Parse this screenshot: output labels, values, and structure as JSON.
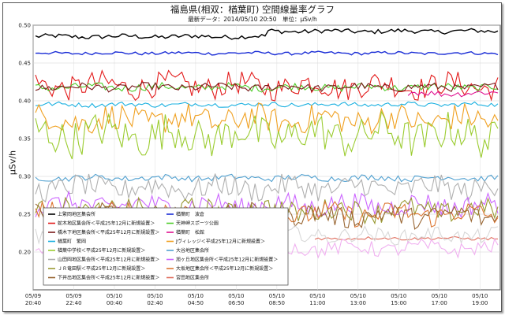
{
  "chart_data": {
    "type": "line",
    "title": "福島県(相双：楢葉町) 空間線量率グラフ",
    "subtitle": "最新データ：2014/05/10 20:50　単位：μSv/h",
    "ylabel": "μSv/h",
    "xlabel": "",
    "ylim": [
      0.15,
      0.5
    ],
    "yticks": [
      "0.50",
      "0.45",
      "0.40",
      "0.35",
      "0.30",
      "0.25",
      "0.20"
    ],
    "xticks": [
      {
        "date": "05/09",
        "time": "20:40"
      },
      {
        "date": "05/09",
        "time": "22:40"
      },
      {
        "date": "05/10",
        "time": "00:40"
      },
      {
        "date": "05/10",
        "time": "02:40"
      },
      {
        "date": "05/10",
        "time": "04:50"
      },
      {
        "date": "05/10",
        "time": "06:50"
      },
      {
        "date": "05/10",
        "time": "08:50"
      },
      {
        "date": "05/10",
        "time": "11:00"
      },
      {
        "date": "05/10",
        "time": "13:00"
      },
      {
        "date": "05/10",
        "time": "15:00"
      },
      {
        "date": "05/10",
        "time": "17:00"
      },
      {
        "date": "05/10",
        "time": "19:00"
      }
    ],
    "legend_position": "bottom-left",
    "series": [
      {
        "name": "上繁岡地区集会所",
        "color": "#000000",
        "mean": 0.485,
        "amp": 0.003,
        "step": {
          "at": 0.5,
          "delta": 0.007
        }
      },
      {
        "name": "楢葉町　波倉",
        "color": "#1a2dd6",
        "mean": 0.463,
        "amp": 0.002
      },
      {
        "name": "蛇木地区集会所＜平成25年12月に新規設置＞",
        "color": "#e31b1b",
        "mean": 0.42,
        "amp": 0.016
      },
      {
        "name": "天神岬スポーツ公園",
        "color": "#4fcc2a",
        "mean": 0.418,
        "amp": 0.005
      },
      {
        "name": "橋木下地区集会所＜平成25年12月に新規設置＞",
        "color": "#7a1a1a",
        "mean": 0.418,
        "amp": 0.005
      },
      {
        "name": "楢葉町　松館",
        "color": "#e01090",
        "mean": 0.41,
        "amp": 0.004,
        "start": 0.8
      },
      {
        "name": "楢葉町　繁岡",
        "color": "#1ab0e0",
        "mean": 0.395,
        "amp": 0.003
      },
      {
        "name": "Jヴィレッジ＜平成25年12月に新規設置＞",
        "color": "#f0a020",
        "mean": 0.375,
        "amp": 0.018
      },
      {
        "name": "楢葉中学校＜平成25年12月に新規設置＞",
        "color": "#9bcc30",
        "mean": 0.355,
        "amp": 0.025
      },
      {
        "name": "大谷地区集会所",
        "color": "#50a0d0",
        "mean": 0.298,
        "amp": 0.004
      },
      {
        "name": "山田岡地区集会所＜平成25年12月に新規設置＞",
        "color": "#b0b0b0",
        "mean": 0.285,
        "amp": 0.015
      },
      {
        "name": "旭ヶ丘地区集会所＜平成25年12月に新規設置＞",
        "color": "#cc66ff",
        "mean": 0.262,
        "amp": 0.014
      },
      {
        "name": "ＪＲ竜田駅＜平成25年12月に新規設置＞",
        "color": "#999933",
        "mean": 0.255,
        "amp": 0.014
      },
      {
        "name": "大坂地区集会所＜平成25年12月に新規設置＞",
        "color": "#dd7733",
        "mean": 0.25,
        "amp": 0.014
      },
      {
        "name": "下井出地区集会所＜平成25年12月に新規設置＞",
        "color": "#996633",
        "mean": 0.248,
        "amp": 0.014
      },
      {
        "name": "宮田地区集会所",
        "color": "#e07060",
        "mean": 0.218,
        "amp": 0.002,
        "start": 0.6
      },
      {
        "name": "",
        "color": "#d8d8d8",
        "mean": 0.222,
        "amp": 0.01
      },
      {
        "name": "",
        "color": "#f0b0f0",
        "mean": 0.205,
        "amp": 0.01
      }
    ],
    "legend_order": [
      [
        "上繁岡地区集会所",
        "楢葉町　波倉"
      ],
      [
        "蛇木地区集会所＜平成25年12月に新規設置＞",
        "天神岬スポーツ公園"
      ],
      [
        "橋木下地区集会所＜平成25年12月に新規設置＞",
        "楢葉町　松館"
      ],
      [
        "楢葉町　繁岡",
        "Jヴィレッジ＜平成25年12月に新規設置＞"
      ],
      [
        "楢葉中学校＜平成25年12月に新規設置＞",
        "大谷地区集会所"
      ],
      [
        "山田岡地区集会所＜平成25年12月に新規設置＞",
        "旭ヶ丘地区集会所＜平成25年12月に新規設置＞"
      ],
      [
        "ＪＲ竜田駅＜平成25年12月に新規設置＞",
        "大坂地区集会所＜平成25年12月に新規設置＞"
      ],
      [
        "下井出地区集会所＜平成25年12月に新規設置＞",
        "宮田地区集会所"
      ]
    ]
  }
}
